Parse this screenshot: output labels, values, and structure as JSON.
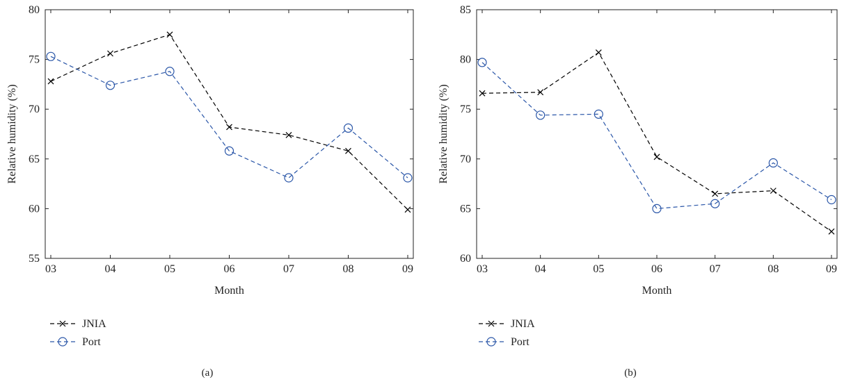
{
  "chart_data": [
    {
      "type": "line",
      "panel_label": "(a)",
      "xlabel": "Month",
      "ylabel": "Relative humidity (%)",
      "categories": [
        "03",
        "04",
        "05",
        "06",
        "07",
        "08",
        "09"
      ],
      "ylim": [
        55,
        80
      ],
      "yticks": [
        55,
        60,
        65,
        70,
        75,
        80
      ],
      "grid": false,
      "legend": "below-left",
      "series": [
        {
          "name": "JNIA",
          "color": "#000000",
          "marker": "x",
          "values": [
            72.8,
            75.6,
            77.5,
            68.2,
            67.4,
            65.8,
            59.9
          ]
        },
        {
          "name": "Port",
          "color": "#2a56a8",
          "marker": "circle",
          "values": [
            75.3,
            72.4,
            73.8,
            65.8,
            63.1,
            68.1,
            63.1
          ]
        }
      ]
    },
    {
      "type": "line",
      "panel_label": "(b)",
      "xlabel": "Month",
      "ylabel": "Relative humidity (%)",
      "categories": [
        "03",
        "04",
        "05",
        "06",
        "07",
        "08",
        "09"
      ],
      "ylim": [
        60,
        85
      ],
      "yticks": [
        60,
        65,
        70,
        75,
        80,
        85
      ],
      "grid": false,
      "legend": "below-left",
      "series": [
        {
          "name": "JNIA",
          "color": "#000000",
          "marker": "x",
          "values": [
            76.6,
            76.7,
            80.7,
            70.2,
            66.5,
            66.8,
            62.7
          ]
        },
        {
          "name": "Port",
          "color": "#2a56a8",
          "marker": "circle",
          "values": [
            79.7,
            74.4,
            74.5,
            65.0,
            65.5,
            69.6,
            65.9
          ]
        }
      ]
    }
  ]
}
